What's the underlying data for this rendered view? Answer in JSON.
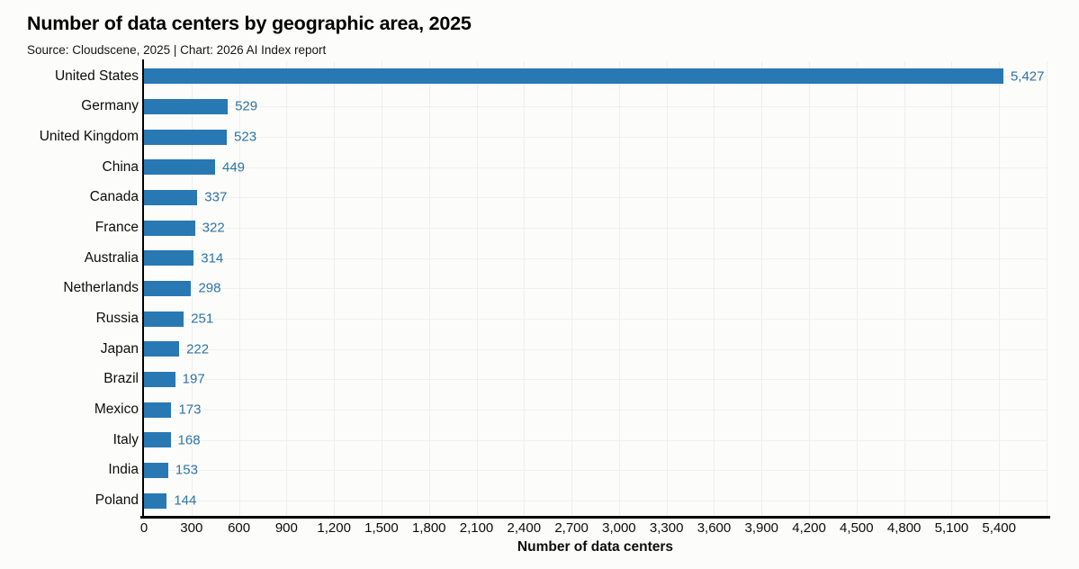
{
  "header": {
    "title": "Number of data centers by geographic area, 2025",
    "subtitle": "Source: Cloudscene, 2025 | Chart: 2026 AI Index report"
  },
  "chart_data": {
    "type": "bar",
    "orientation": "horizontal",
    "title": "Number of data centers by geographic area, 2025",
    "subtitle": "Source: Cloudscene, 2025 | Chart: 2026 AI Index report",
    "categories": [
      "United States",
      "Germany",
      "United Kingdom",
      "China",
      "Canada",
      "France",
      "Australia",
      "Netherlands",
      "Russia",
      "Japan",
      "Brazil",
      "Mexico",
      "Italy",
      "India",
      "Poland"
    ],
    "values": [
      5427,
      529,
      523,
      449,
      337,
      322,
      314,
      298,
      251,
      222,
      197,
      173,
      168,
      153,
      144
    ],
    "value_labels": [
      "5,427",
      "529",
      "523",
      "449",
      "337",
      "322",
      "314",
      "298",
      "251",
      "222",
      "197",
      "173",
      "168",
      "153",
      "144"
    ],
    "xlabel": "Number of data centers",
    "ylabel": "",
    "xlim": [
      0,
      5700
    ],
    "xtick_interval": 300,
    "xtick_labels": [
      "0",
      "300",
      "600",
      "900",
      "1,200",
      "1,500",
      "1,800",
      "2,100",
      "2,400",
      "2,700",
      "3,000",
      "3,300",
      "3,600",
      "3,900",
      "4,200",
      "4,500",
      "4,800",
      "5,100",
      "5,400"
    ],
    "grid": true,
    "legend": "none",
    "colors": {
      "bar": "#2878b4",
      "value_label": "#2d74a7",
      "axis": "#000000",
      "gridline": "#efeeec",
      "background": "#fcfcfa",
      "text": "#0d0d0d"
    }
  }
}
